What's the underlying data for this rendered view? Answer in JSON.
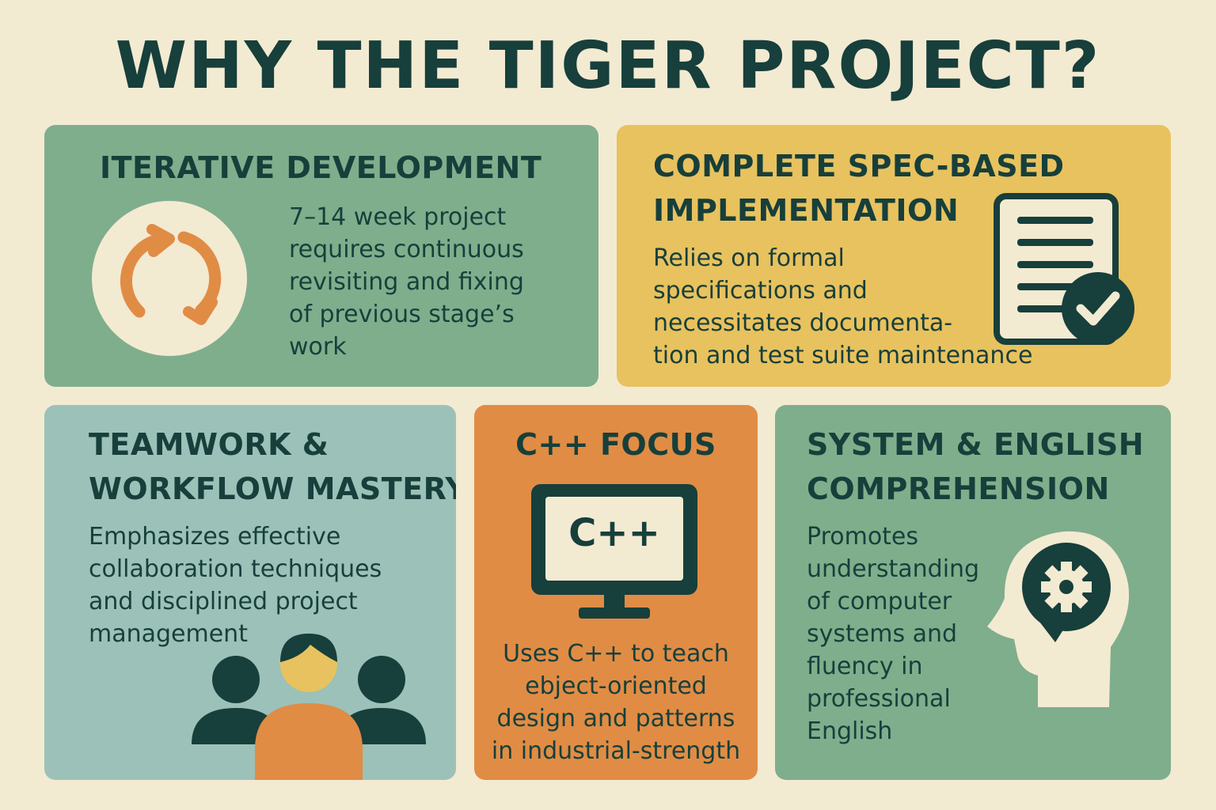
{
  "title": "WHY THE TIGER PROJECT?",
  "colors": {
    "background": "#f3ead2",
    "dark_teal": "#173f3b",
    "green": "#7fae8c",
    "yellow": "#e8c25e",
    "blue_gray": "#9cc1b8",
    "orange": "#e08c45",
    "cream": "#f3ead2"
  },
  "cards": {
    "iterative": {
      "heading": [
        "ITERATIVE DEVELOPMENT"
      ],
      "body": [
        "7–14 week project",
        "requires continuous",
        "revisiting and fixing",
        "of previous stage’s",
        "work"
      ],
      "icon": "refresh-cycle-icon"
    },
    "spec": {
      "heading": [
        "COMPLETE SPEC-BASED",
        "IMPLEMENTATION"
      ],
      "body": [
        "Relies on formal",
        "specifications and",
        "necessitates documenta-",
        "tion and test suite maintenance"
      ],
      "icon": "document-check-icon"
    },
    "teamwork": {
      "heading": [
        "TEAMWORK &",
        "WORKFLOW MASTERY"
      ],
      "body": [
        "Emphasizes effective",
        "collaboration techniques",
        "and disciplined project",
        "management"
      ],
      "icon": "team-people-icon"
    },
    "cpp": {
      "heading": [
        "C++ FOCUS"
      ],
      "monitor_text": "C++",
      "body": [
        "Uses C++ to teach",
        "ebject-oriented",
        "design and patterns",
        "in industrial-strength"
      ],
      "icon": "monitor-icon"
    },
    "system": {
      "heading": [
        "SYSTEM & ENGLISH",
        "COMPREHENSION"
      ],
      "body": [
        "Promotes",
        "understanding",
        "of computer",
        "systems and",
        "fluency in",
        "professional",
        "English"
      ],
      "icon": "head-gear-icon"
    }
  }
}
